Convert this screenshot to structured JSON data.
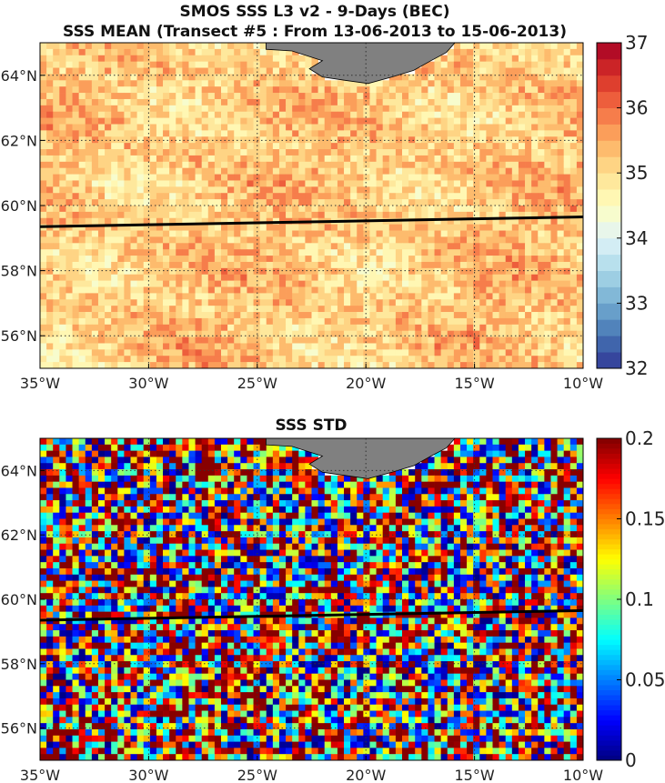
{
  "figure": {
    "title_line1": "SMOS SSS L3 v2 - 9-Days (BEC)",
    "title_line2": "SSS MEAN (Transect #5 : From 13-06-2013 to 15-06-2013)",
    "title_bottom": "SSS STD"
  },
  "colors": {
    "land": "#808080",
    "transect": "#000000",
    "grid": "#333333"
  },
  "chart_data": [
    {
      "type": "heatmap",
      "name": "sss-mean",
      "title": "SSS MEAN (Transect #5 : From 13-06-2013 to 15-06-2013)",
      "xlim": [
        -35,
        -10
      ],
      "ylim": [
        55,
        65
      ],
      "xticks": [
        -35,
        -30,
        -25,
        -20,
        -15,
        -10
      ],
      "xtick_labels": [
        "35°W",
        "30°W",
        "25°W",
        "20°W",
        "15°W",
        "10°W"
      ],
      "yticks": [
        56,
        58,
        60,
        62,
        64
      ],
      "ytick_labels": [
        "56°N",
        "58°N",
        "60°N",
        "62°N",
        "64°N"
      ],
      "grid": true,
      "colorbar": {
        "min": 32,
        "max": 37,
        "ticks": [
          32,
          33,
          34,
          35,
          36,
          37
        ],
        "tick_labels": [
          "32",
          "33",
          "34",
          "35",
          "36",
          "37"
        ],
        "colormap": "RdYlBu_r",
        "steps": 20
      },
      "field_range": [
        34.0,
        36.3
      ],
      "typical_value": 35.2,
      "transect": [
        {
          "lon": -35,
          "lat": 59.35
        },
        {
          "lon": -10,
          "lat": 59.65
        }
      ],
      "land_polygon": [
        {
          "lon": -24.6,
          "lat": 65.0
        },
        {
          "lon": -19.8,
          "lat": 65.0
        },
        {
          "lon": -15.9,
          "lat": 65.0
        },
        {
          "lon": -16.3,
          "lat": 64.7
        },
        {
          "lon": -17.0,
          "lat": 64.45
        },
        {
          "lon": -17.8,
          "lat": 64.15
        },
        {
          "lon": -18.8,
          "lat": 63.95
        },
        {
          "lon": -19.9,
          "lat": 63.75
        },
        {
          "lon": -21.0,
          "lat": 63.85
        },
        {
          "lon": -22.0,
          "lat": 63.95
        },
        {
          "lon": -22.6,
          "lat": 64.2
        },
        {
          "lon": -22.0,
          "lat": 64.45
        },
        {
          "lon": -23.4,
          "lat": 64.75
        },
        {
          "lon": -24.6,
          "lat": 64.8
        }
      ]
    },
    {
      "type": "heatmap",
      "name": "sss-std",
      "title": "SSS STD",
      "xlim": [
        -35,
        -10
      ],
      "ylim": [
        55,
        65
      ],
      "xticks": [
        -35,
        -30,
        -25,
        -20,
        -15,
        -10
      ],
      "xtick_labels": [
        "35°W",
        "30°W",
        "25°W",
        "20°W",
        "15°W",
        "10°W"
      ],
      "yticks": [
        56,
        58,
        60,
        62,
        64
      ],
      "ytick_labels": [
        "56°N",
        "58°N",
        "60°N",
        "62°N",
        "64°N"
      ],
      "grid": true,
      "colorbar": {
        "min": 0,
        "max": 0.2,
        "ticks": [
          0,
          0.05,
          0.1,
          0.15,
          0.2
        ],
        "tick_labels": [
          "0",
          "0.05",
          "0.1",
          "0.15",
          "0.2"
        ],
        "colormap": "jet",
        "steps": 64
      },
      "field_range": [
        0,
        0.2
      ],
      "transect": [
        {
          "lon": -35,
          "lat": 59.35
        },
        {
          "lon": -10,
          "lat": 59.65
        }
      ],
      "land_polygon": [
        {
          "lon": -24.6,
          "lat": 65.0
        },
        {
          "lon": -19.8,
          "lat": 65.0
        },
        {
          "lon": -15.9,
          "lat": 65.0
        },
        {
          "lon": -16.3,
          "lat": 64.7
        },
        {
          "lon": -17.0,
          "lat": 64.45
        },
        {
          "lon": -17.8,
          "lat": 64.15
        },
        {
          "lon": -18.8,
          "lat": 63.95
        },
        {
          "lon": -19.9,
          "lat": 63.75
        },
        {
          "lon": -21.0,
          "lat": 63.85
        },
        {
          "lon": -22.0,
          "lat": 63.95
        },
        {
          "lon": -22.6,
          "lat": 64.2
        },
        {
          "lon": -22.0,
          "lat": 64.45
        },
        {
          "lon": -23.4,
          "lat": 64.75
        },
        {
          "lon": -24.6,
          "lat": 64.8
        }
      ]
    }
  ]
}
